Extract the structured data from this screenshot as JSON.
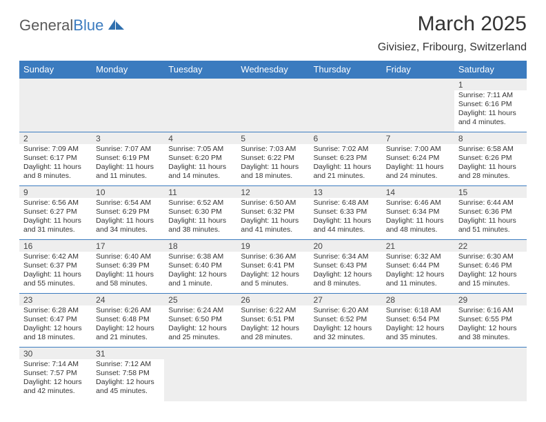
{
  "brand": {
    "part1": "General",
    "part2": "Blue"
  },
  "title": "March 2025",
  "location": "Givisiez, Fribourg, Switzerland",
  "colors": {
    "header_bg": "#3b7bbf",
    "header_text": "#ffffff",
    "daynum_bg": "#eeeeee",
    "border": "#3b7bbf",
    "text": "#333333",
    "background": "#ffffff"
  },
  "weekdays": [
    "Sunday",
    "Monday",
    "Tuesday",
    "Wednesday",
    "Thursday",
    "Friday",
    "Saturday"
  ],
  "weeks": [
    [
      null,
      null,
      null,
      null,
      null,
      null,
      {
        "n": "1",
        "sr": "Sunrise: 7:11 AM",
        "ss": "Sunset: 6:16 PM",
        "dl": "Daylight: 11 hours and 4 minutes."
      }
    ],
    [
      {
        "n": "2",
        "sr": "Sunrise: 7:09 AM",
        "ss": "Sunset: 6:17 PM",
        "dl": "Daylight: 11 hours and 8 minutes."
      },
      {
        "n": "3",
        "sr": "Sunrise: 7:07 AM",
        "ss": "Sunset: 6:19 PM",
        "dl": "Daylight: 11 hours and 11 minutes."
      },
      {
        "n": "4",
        "sr": "Sunrise: 7:05 AM",
        "ss": "Sunset: 6:20 PM",
        "dl": "Daylight: 11 hours and 14 minutes."
      },
      {
        "n": "5",
        "sr": "Sunrise: 7:03 AM",
        "ss": "Sunset: 6:22 PM",
        "dl": "Daylight: 11 hours and 18 minutes."
      },
      {
        "n": "6",
        "sr": "Sunrise: 7:02 AM",
        "ss": "Sunset: 6:23 PM",
        "dl": "Daylight: 11 hours and 21 minutes."
      },
      {
        "n": "7",
        "sr": "Sunrise: 7:00 AM",
        "ss": "Sunset: 6:24 PM",
        "dl": "Daylight: 11 hours and 24 minutes."
      },
      {
        "n": "8",
        "sr": "Sunrise: 6:58 AM",
        "ss": "Sunset: 6:26 PM",
        "dl": "Daylight: 11 hours and 28 minutes."
      }
    ],
    [
      {
        "n": "9",
        "sr": "Sunrise: 6:56 AM",
        "ss": "Sunset: 6:27 PM",
        "dl": "Daylight: 11 hours and 31 minutes."
      },
      {
        "n": "10",
        "sr": "Sunrise: 6:54 AM",
        "ss": "Sunset: 6:29 PM",
        "dl": "Daylight: 11 hours and 34 minutes."
      },
      {
        "n": "11",
        "sr": "Sunrise: 6:52 AM",
        "ss": "Sunset: 6:30 PM",
        "dl": "Daylight: 11 hours and 38 minutes."
      },
      {
        "n": "12",
        "sr": "Sunrise: 6:50 AM",
        "ss": "Sunset: 6:32 PM",
        "dl": "Daylight: 11 hours and 41 minutes."
      },
      {
        "n": "13",
        "sr": "Sunrise: 6:48 AM",
        "ss": "Sunset: 6:33 PM",
        "dl": "Daylight: 11 hours and 44 minutes."
      },
      {
        "n": "14",
        "sr": "Sunrise: 6:46 AM",
        "ss": "Sunset: 6:34 PM",
        "dl": "Daylight: 11 hours and 48 minutes."
      },
      {
        "n": "15",
        "sr": "Sunrise: 6:44 AM",
        "ss": "Sunset: 6:36 PM",
        "dl": "Daylight: 11 hours and 51 minutes."
      }
    ],
    [
      {
        "n": "16",
        "sr": "Sunrise: 6:42 AM",
        "ss": "Sunset: 6:37 PM",
        "dl": "Daylight: 11 hours and 55 minutes."
      },
      {
        "n": "17",
        "sr": "Sunrise: 6:40 AM",
        "ss": "Sunset: 6:39 PM",
        "dl": "Daylight: 11 hours and 58 minutes."
      },
      {
        "n": "18",
        "sr": "Sunrise: 6:38 AM",
        "ss": "Sunset: 6:40 PM",
        "dl": "Daylight: 12 hours and 1 minute."
      },
      {
        "n": "19",
        "sr": "Sunrise: 6:36 AM",
        "ss": "Sunset: 6:41 PM",
        "dl": "Daylight: 12 hours and 5 minutes."
      },
      {
        "n": "20",
        "sr": "Sunrise: 6:34 AM",
        "ss": "Sunset: 6:43 PM",
        "dl": "Daylight: 12 hours and 8 minutes."
      },
      {
        "n": "21",
        "sr": "Sunrise: 6:32 AM",
        "ss": "Sunset: 6:44 PM",
        "dl": "Daylight: 12 hours and 11 minutes."
      },
      {
        "n": "22",
        "sr": "Sunrise: 6:30 AM",
        "ss": "Sunset: 6:46 PM",
        "dl": "Daylight: 12 hours and 15 minutes."
      }
    ],
    [
      {
        "n": "23",
        "sr": "Sunrise: 6:28 AM",
        "ss": "Sunset: 6:47 PM",
        "dl": "Daylight: 12 hours and 18 minutes."
      },
      {
        "n": "24",
        "sr": "Sunrise: 6:26 AM",
        "ss": "Sunset: 6:48 PM",
        "dl": "Daylight: 12 hours and 21 minutes."
      },
      {
        "n": "25",
        "sr": "Sunrise: 6:24 AM",
        "ss": "Sunset: 6:50 PM",
        "dl": "Daylight: 12 hours and 25 minutes."
      },
      {
        "n": "26",
        "sr": "Sunrise: 6:22 AM",
        "ss": "Sunset: 6:51 PM",
        "dl": "Daylight: 12 hours and 28 minutes."
      },
      {
        "n": "27",
        "sr": "Sunrise: 6:20 AM",
        "ss": "Sunset: 6:52 PM",
        "dl": "Daylight: 12 hours and 32 minutes."
      },
      {
        "n": "28",
        "sr": "Sunrise: 6:18 AM",
        "ss": "Sunset: 6:54 PM",
        "dl": "Daylight: 12 hours and 35 minutes."
      },
      {
        "n": "29",
        "sr": "Sunrise: 6:16 AM",
        "ss": "Sunset: 6:55 PM",
        "dl": "Daylight: 12 hours and 38 minutes."
      }
    ],
    [
      {
        "n": "30",
        "sr": "Sunrise: 7:14 AM",
        "ss": "Sunset: 7:57 PM",
        "dl": "Daylight: 12 hours and 42 minutes."
      },
      {
        "n": "31",
        "sr": "Sunrise: 7:12 AM",
        "ss": "Sunset: 7:58 PM",
        "dl": "Daylight: 12 hours and 45 minutes."
      },
      null,
      null,
      null,
      null,
      null
    ]
  ]
}
